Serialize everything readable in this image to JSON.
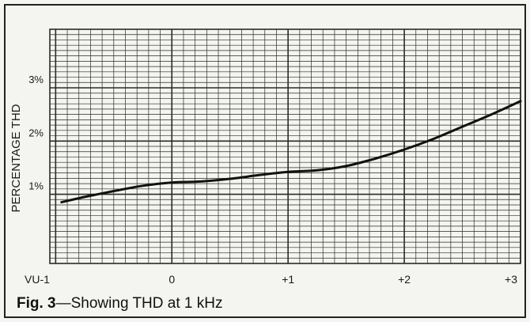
{
  "caption": {
    "label": "Fig. 3",
    "text": "—Showing THD at 1 kHz"
  },
  "chart_data": {
    "type": "line",
    "title": "",
    "xlabel": "",
    "ylabel": "PERCENTAGE THD",
    "x_tick_labels": [
      "VU-1",
      "0",
      "+1",
      "+2",
      "+3"
    ],
    "y_tick_labels": [
      "1%",
      "2%",
      "3%"
    ],
    "x_ticks": [
      -1,
      0,
      1,
      2,
      3
    ],
    "y_ticks": [
      1,
      2,
      3
    ],
    "xlim": [
      -1.05,
      3.0
    ],
    "ylim": [
      -0.3,
      4.1
    ],
    "grid": true,
    "series": [
      {
        "x": [
          -0.95,
          -0.75,
          -0.5,
          -0.25,
          0,
          0.25,
          0.5,
          0.75,
          1.0,
          1.25,
          1.5,
          1.75,
          2.0,
          2.25,
          2.5,
          2.75,
          3.0
        ],
        "values": [
          0.85,
          0.95,
          1.06,
          1.16,
          1.22,
          1.24,
          1.29,
          1.36,
          1.42,
          1.45,
          1.53,
          1.67,
          1.84,
          2.04,
          2.27,
          2.5,
          2.75
        ]
      }
    ]
  },
  "colors": {
    "paper": "#f4f4f0",
    "grid": "#2a2a2a",
    "curve": "#111111",
    "text": "#1a1a1a"
  }
}
